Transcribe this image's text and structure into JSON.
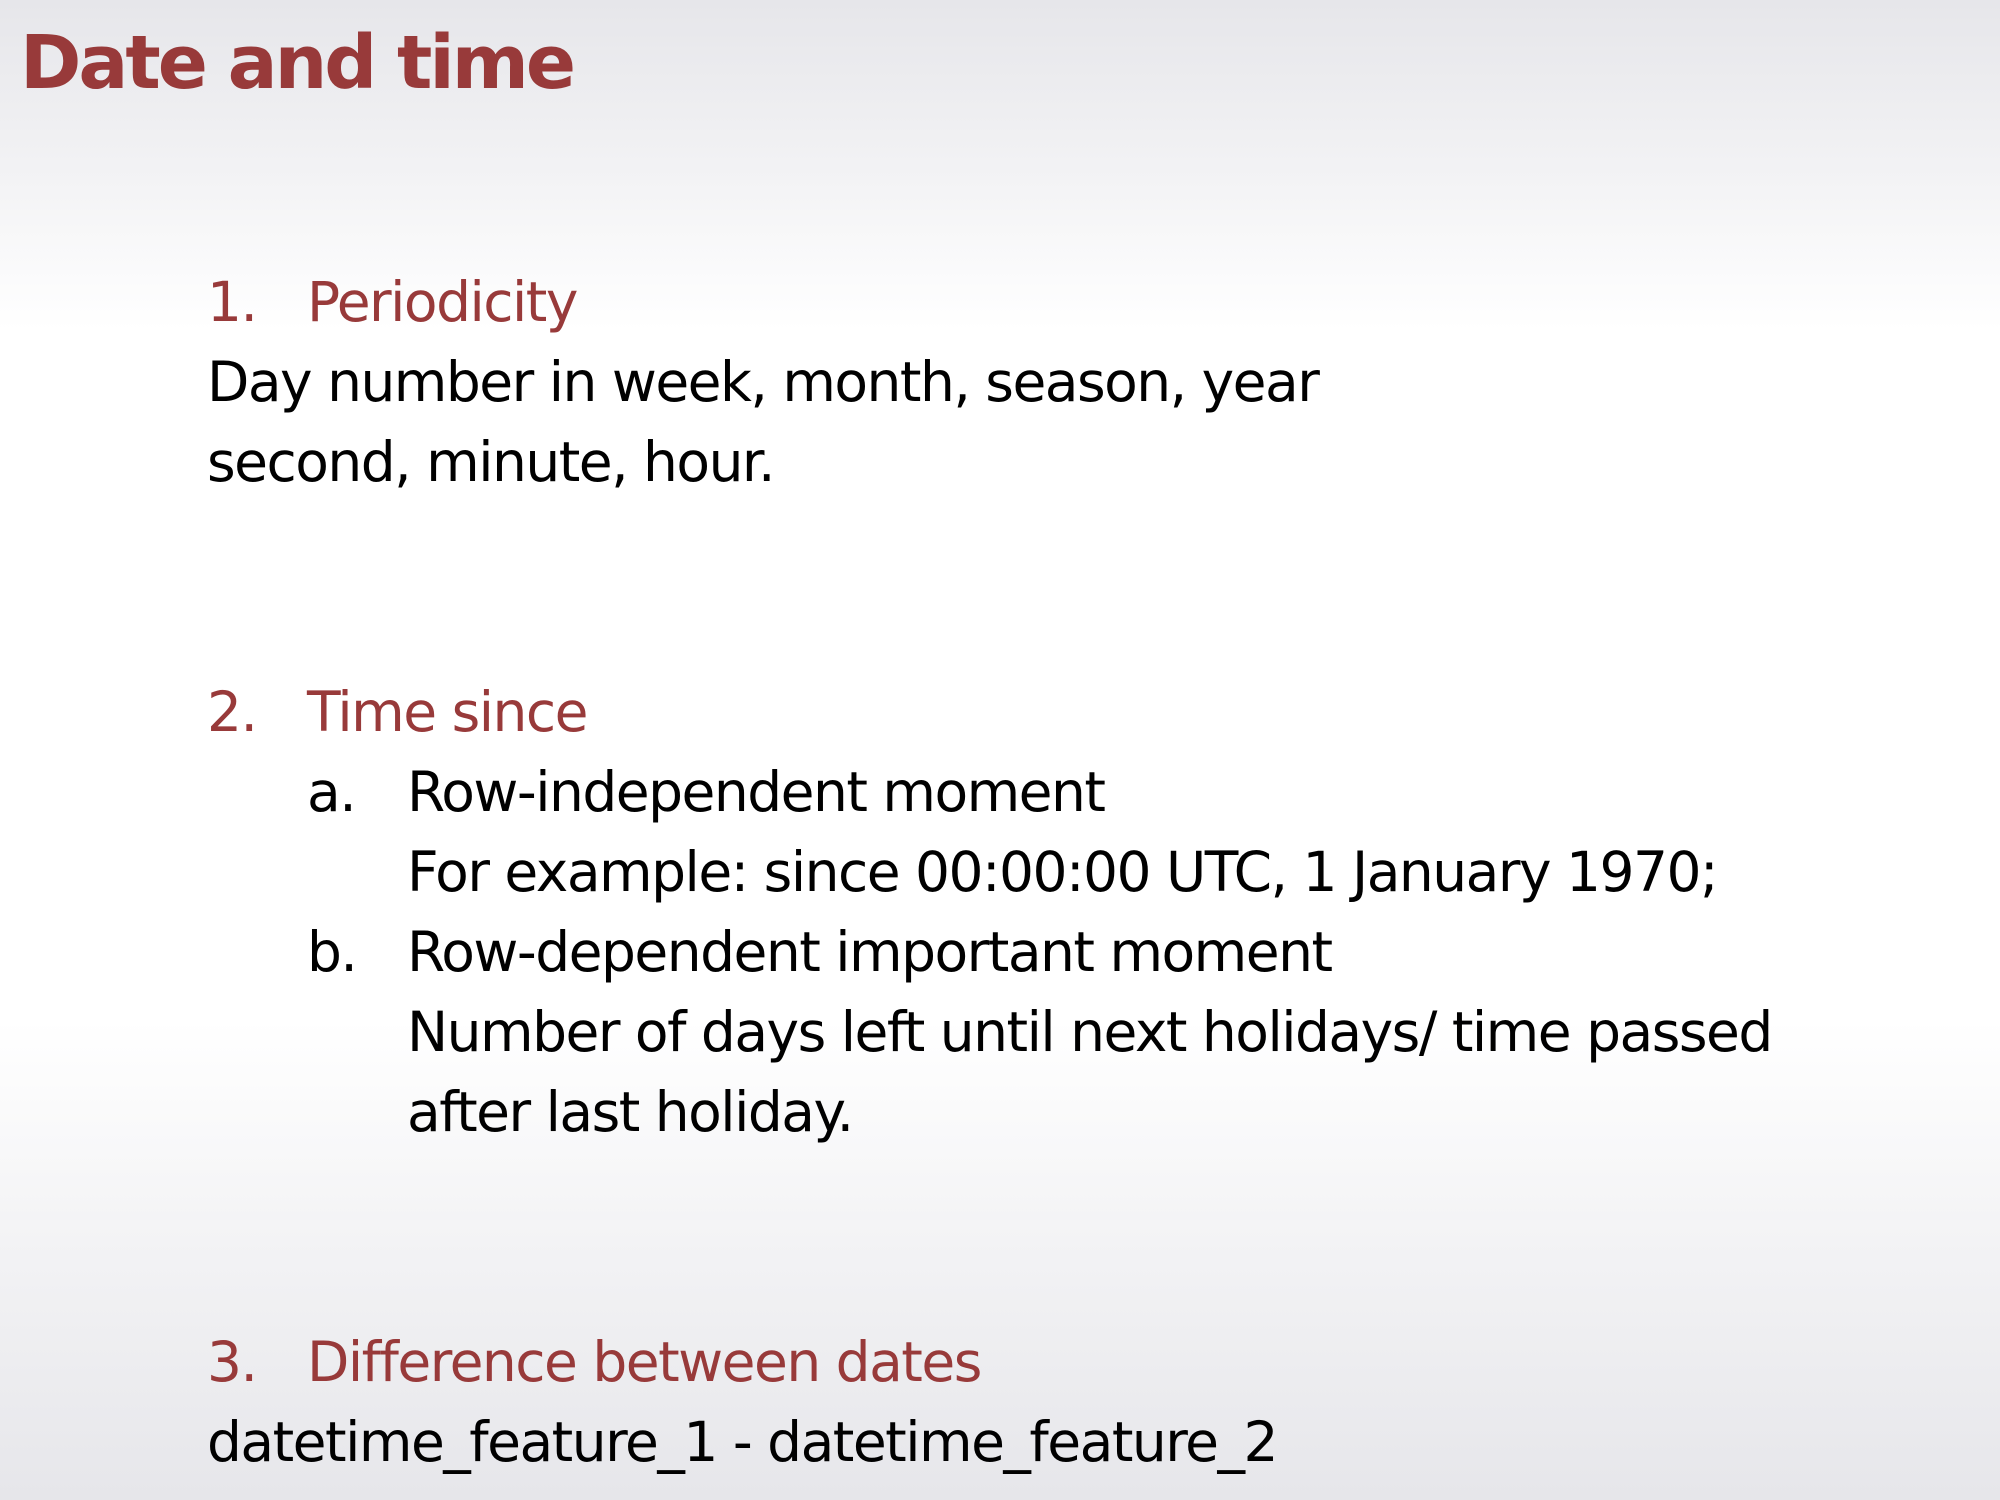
{
  "slide": {
    "title": "Date and time"
  },
  "colors": {
    "accent": "#983a3a",
    "text": "#000000"
  },
  "sections": [
    {
      "number": "1.",
      "heading": "Periodicity",
      "lines": [
        "Day number in week, month, season, year",
        "second, minute, hour."
      ]
    },
    {
      "number": "2.",
      "heading": "Time since",
      "items": [
        {
          "letter": "a.",
          "lines": [
            "Row-independent moment",
            "For example: since 00:00:00 UTC, 1 January 1970;"
          ]
        },
        {
          "letter": "b.",
          "lines": [
            "Row-dependent important moment",
            "Number of days left until next holidays/ time passed",
            "after last holiday."
          ]
        }
      ]
    },
    {
      "number": "3.",
      "heading": "Difference between dates",
      "lines": [
        "datetime_feature_1 - datetime_feature_2"
      ]
    }
  ]
}
